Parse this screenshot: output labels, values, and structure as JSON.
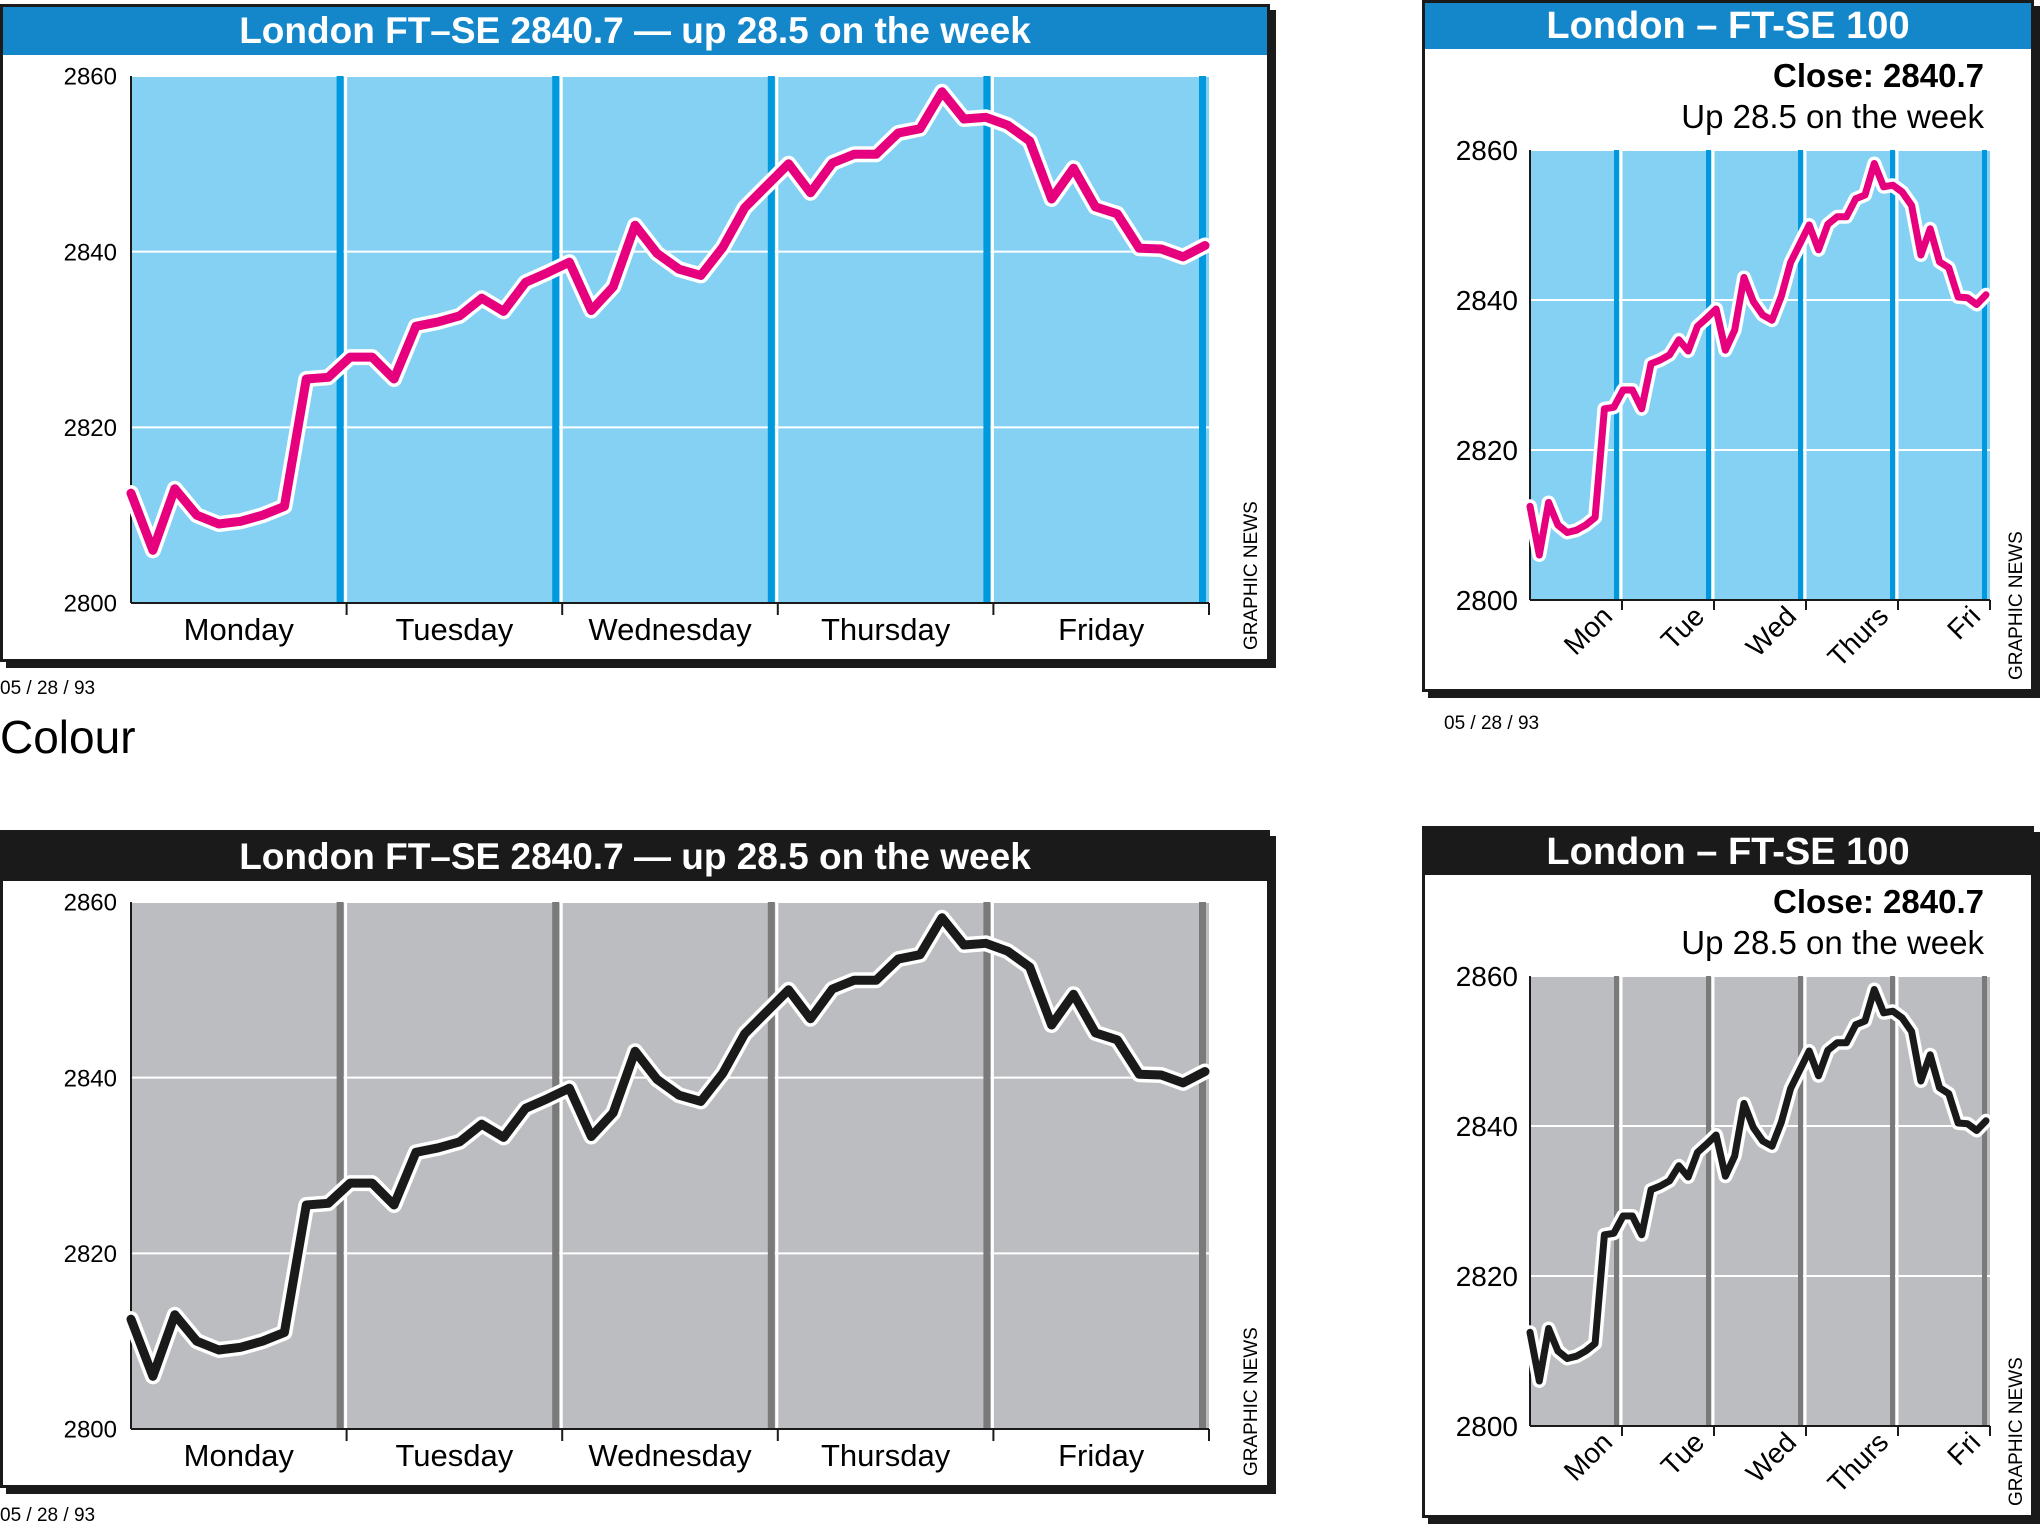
{
  "colors": {
    "colour_bar": "#1487cb",
    "colour_plot": "#84d1f4",
    "colour_divider": "#0099dd",
    "colour_line": "#e6007e",
    "mono_bar": "#1a1a1a",
    "mono_plot": "#bcbdc0",
    "mono_divider": "#7a7a7a",
    "mono_line": "#1a1a1a"
  },
  "section_label": "Colour",
  "credit": "GRAPHIC NEWS",
  "date_stamp": "05 / 28 / 93",
  "wide": {
    "title": "London FT–SE 2840.7 — up 28.5 on the week"
  },
  "narrow": {
    "title": "London – FT-SE 100",
    "close_label": "Close: 2840.7",
    "change_label": "Up 28.5 on the week"
  },
  "chart_data": {
    "type": "line",
    "title": "London FT–SE 2840.7 — up 28.5 on the week",
    "ylim": [
      2800,
      2860
    ],
    "yticks": [
      2800,
      2820,
      2840,
      2860
    ],
    "categories_full": [
      "Monday",
      "Tuesday",
      "Wednesday",
      "Thursday",
      "Friday"
    ],
    "categories_short": [
      "Mon",
      "Tue",
      "Wed",
      "Thurs",
      "Fri"
    ],
    "grid": true,
    "series": [
      {
        "values": [
          2812.5,
          2806,
          2813,
          2810,
          2809,
          2809.3,
          2810,
          2811,
          2825.5,
          2825.7,
          2828,
          2828,
          2825.5,
          2831.5,
          2832,
          2832.7,
          2834.7,
          2833.2,
          2836.5,
          2837.6,
          2838.8,
          2833.3,
          2836,
          2843,
          2839.8,
          2838,
          2837.3,
          2840.5,
          2845,
          2847.5,
          2850,
          2846.7,
          2850.1,
          2851.1,
          2851.1,
          2853.5,
          2854,
          2858.2,
          2855.1,
          2855.3,
          2854.4,
          2852.6,
          2846,
          2849.5,
          2845.1,
          2844.3,
          2840.4,
          2840.3,
          2839.4,
          2840.7
        ]
      }
    ]
  }
}
